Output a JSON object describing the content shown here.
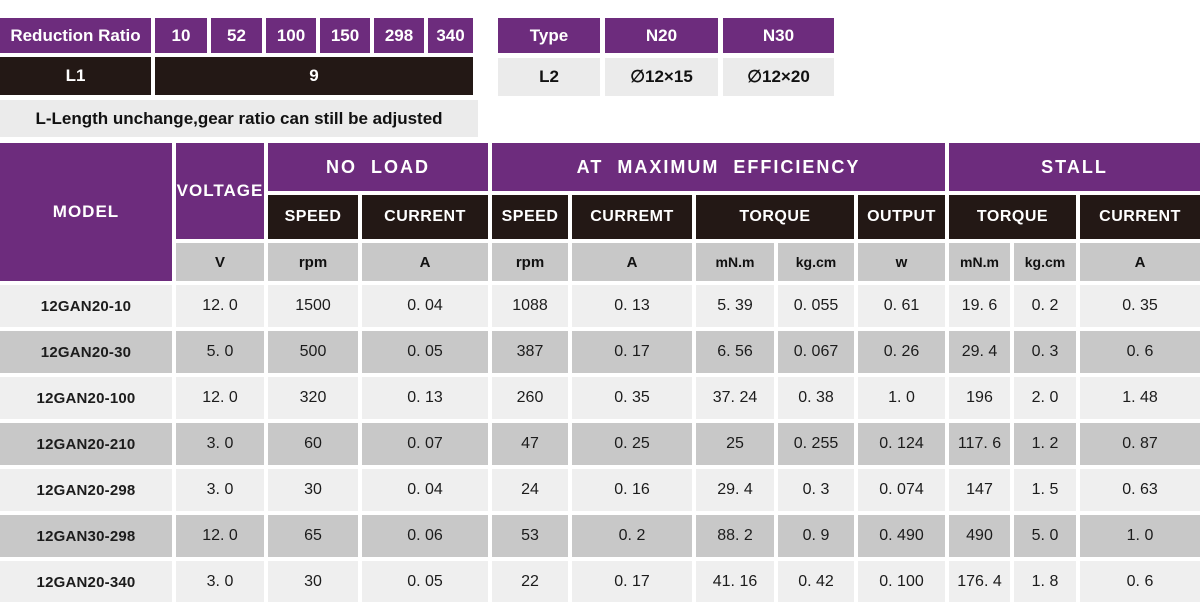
{
  "colors": {
    "accent_purple": "#6D2C7D",
    "header_black": "#231815",
    "unit_gray": "#C8C8C8",
    "row_light": "#EFEFEF",
    "row_dark": "#C8C8C8",
    "panel_gray": "#EBEBEB"
  },
  "reduction_table": {
    "header_label": "Reduction Ratio",
    "ratios": [
      "10",
      "52",
      "100",
      "150",
      "298",
      "340"
    ],
    "l1_label": "L1",
    "l1_value": "9",
    "note": "L-Length unchange,gear ratio can still be adjusted"
  },
  "type_table": {
    "headers": [
      "Type",
      "N20",
      "N30"
    ],
    "row": [
      "L2",
      "∅12×15",
      "∅12×20"
    ]
  },
  "spec_table": {
    "model_header": "MODEL",
    "voltage_header": "VOLTAGE",
    "voltage_unit": "V",
    "groups": {
      "no_load": "NO LOAD",
      "max_eff": "AT MAXIMUM EFFICIENCY",
      "stall": "STALL"
    },
    "sub_headers": {
      "nl_speed": "SPEED",
      "nl_current": "CURRENT",
      "me_speed": "SPEED",
      "me_current": "CURREMT",
      "me_torque": "TORQUE",
      "me_output": "OUTPUT",
      "st_torque": "TORQUE",
      "st_current": "CURRENT"
    },
    "units": {
      "nl_speed": "rpm",
      "nl_current": "A",
      "me_speed": "rpm",
      "me_current": "A",
      "me_torque_mnm": "mN.m",
      "me_torque_kgcm": "kg.cm",
      "me_output": "w",
      "st_torque_mnm": "mN.m",
      "st_torque_kgcm": "kg.cm",
      "st_current": "A"
    },
    "rows": [
      {
        "model": "12GAN20-10",
        "values": [
          "12. 0",
          "1500",
          "0. 04",
          "1088",
          "0. 13",
          "5. 39",
          "0. 055",
          "0. 61",
          "19. 6",
          "0. 2",
          "0. 35"
        ]
      },
      {
        "model": "12GAN20-30",
        "values": [
          "5. 0",
          "500",
          "0. 05",
          "387",
          "0. 17",
          "6. 56",
          "0. 067",
          "0. 26",
          "29. 4",
          "0. 3",
          "0. 6"
        ]
      },
      {
        "model": "12GAN20-100",
        "values": [
          "12. 0",
          "320",
          "0. 13",
          "260",
          "0. 35",
          "37. 24",
          "0. 38",
          "1. 0",
          "196",
          "2. 0",
          "1. 48"
        ]
      },
      {
        "model": "12GAN20-210",
        "values": [
          "3. 0",
          "60",
          "0. 07",
          "47",
          "0. 25",
          "25",
          "0. 255",
          "0. 124",
          "117. 6",
          "1. 2",
          "0. 87"
        ]
      },
      {
        "model": "12GAN20-298",
        "values": [
          "3. 0",
          "30",
          "0. 04",
          "24",
          "0. 16",
          "29. 4",
          "0. 3",
          "0. 074",
          "147",
          "1. 5",
          "0. 63"
        ]
      },
      {
        "model": "12GAN30-298",
        "values": [
          "12. 0",
          "65",
          "0. 06",
          "53",
          "0. 2",
          "88. 2",
          "0. 9",
          "0. 490",
          "490",
          "5. 0",
          "1. 0"
        ]
      },
      {
        "model": "12GAN20-340",
        "values": [
          "3. 0",
          "30",
          "0. 05",
          "22",
          "0. 17",
          "41. 16",
          "0. 42",
          "0. 100",
          "176. 4",
          "1. 8",
          "0. 6"
        ]
      }
    ]
  }
}
